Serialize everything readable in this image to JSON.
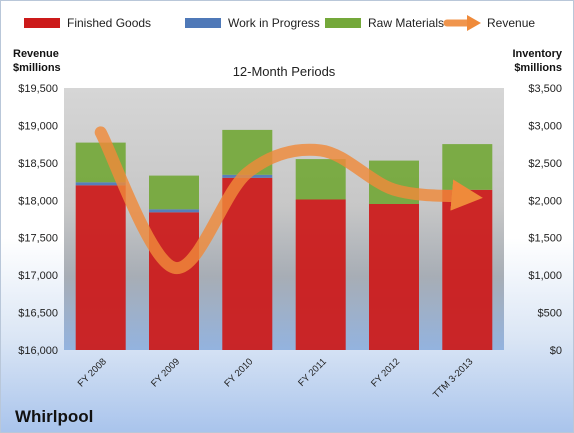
{
  "chart_data": {
    "type": "bar",
    "subtitle": "12-Month Periods",
    "company": "Whirlpool",
    "y_left_label": [
      "Revenue",
      "$millions"
    ],
    "y_right_label": [
      "Inventory",
      "$millions"
    ],
    "categories": [
      "FY 2008",
      "FY 2009",
      "FY 2010",
      "FY 2011",
      "FY 2012",
      "TTM 3-2013"
    ],
    "series": [
      {
        "name": "Finished Goods",
        "type": "stacked-bar",
        "axis": "right",
        "color": "#cc1a1a",
        "values": [
          2200,
          1840,
          2300,
          2010,
          1950,
          2140
        ]
      },
      {
        "name": "Work in Progress",
        "type": "stacked-bar",
        "axis": "right",
        "color": "#4f79b8",
        "values": [
          40,
          40,
          40,
          0,
          0,
          0
        ]
      },
      {
        "name": "Raw Materials",
        "type": "stacked-bar",
        "axis": "right",
        "color": "#74a83a",
        "values": [
          530,
          450,
          600,
          540,
          580,
          610
        ]
      },
      {
        "name": "Revenue",
        "type": "line",
        "axis": "left",
        "color": "#ef8a3a",
        "values": [
          18907,
          17099,
          18366,
          18666,
          18143,
          18050
        ]
      }
    ],
    "y_left": {
      "min": 16000,
      "max": 19500,
      "step": 500,
      "ticks": [
        "$16,000",
        "$16,500",
        "$17,000",
        "$17,500",
        "$18,000",
        "$18,500",
        "$19,000",
        "$19,500"
      ]
    },
    "y_right": {
      "min": 0,
      "max": 3500,
      "step": 500,
      "ticks": [
        "$0",
        "$500",
        "$1,000",
        "$1,500",
        "$2,000",
        "$2,500",
        "$3,000",
        "$3,500"
      ]
    },
    "legend_position": "top",
    "grid": false
  }
}
